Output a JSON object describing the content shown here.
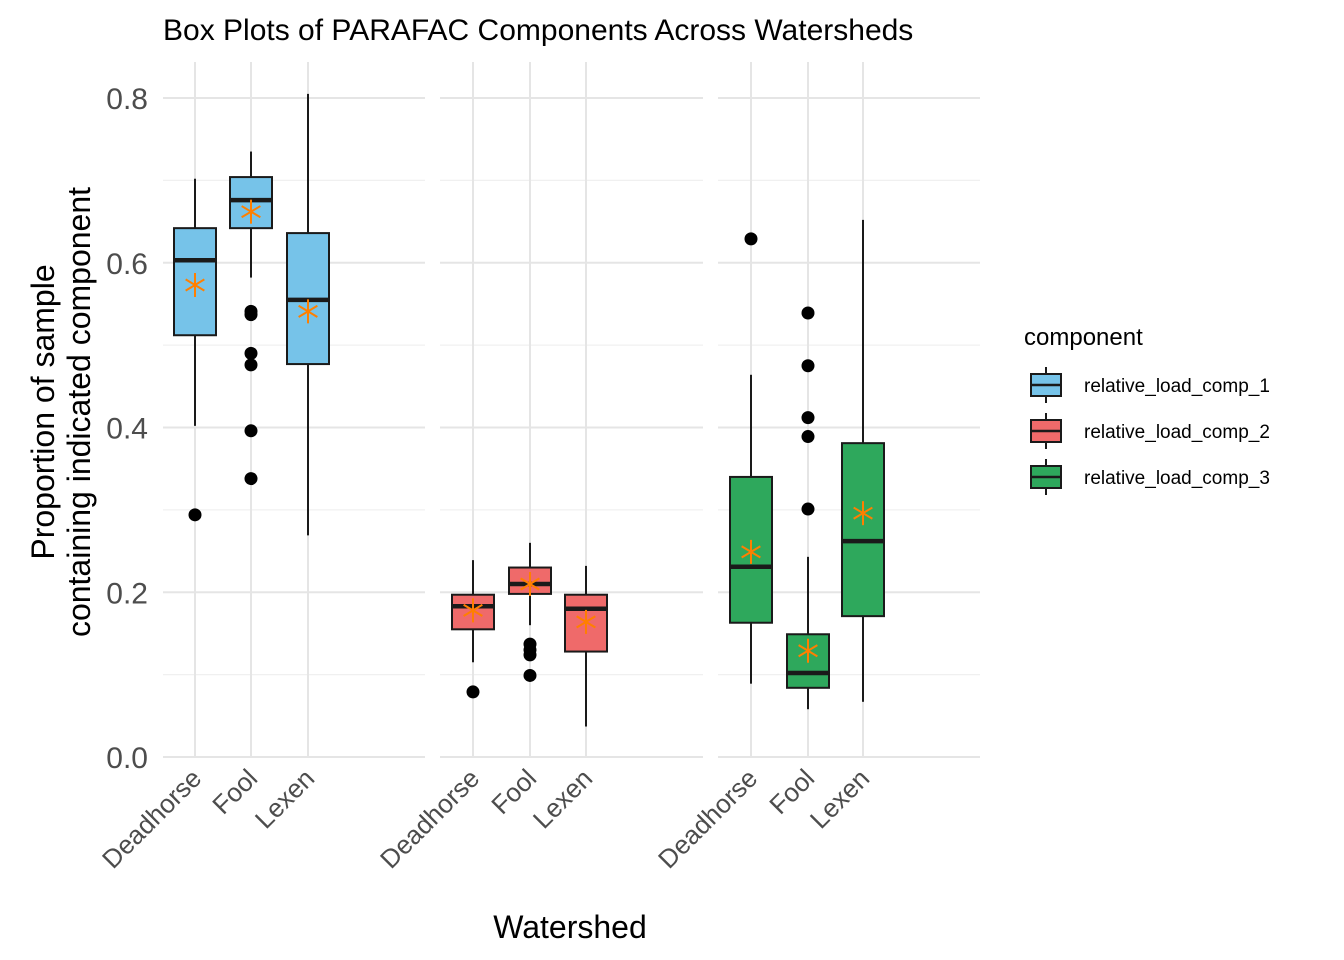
{
  "chart_data": {
    "type": "box",
    "title": "Box Plots of PARAFAC Components Across Watersheds",
    "xlabel": "Watershed",
    "ylabel_line1": "Proportion of sample",
    "ylabel_line2": "containing indicated component",
    "ylim": [
      0,
      0.84
    ],
    "yticks": [
      "0.0",
      "0.2",
      "0.4",
      "0.6",
      "0.8"
    ],
    "grid": true,
    "legend_position": "right",
    "legend_title": "component",
    "categories": [
      "Deadhorse",
      "Fool",
      "Lexen"
    ],
    "mean_marker_color": "#ff7f00",
    "series": [
      {
        "name": "relative_load_comp_1",
        "color": "#76c3e9",
        "boxes": [
          {
            "category": "Deadhorse",
            "whisker_low": 0.402,
            "q1": 0.512,
            "median": 0.603,
            "q3": 0.642,
            "whisker_high": 0.702,
            "mean": 0.573,
            "outliers": [
              0.294
            ]
          },
          {
            "category": "Fool",
            "whisker_low": 0.582,
            "q1": 0.642,
            "median": 0.676,
            "q3": 0.704,
            "whisker_high": 0.735,
            "mean": 0.662,
            "outliers": [
              0.541,
              0.537,
              0.49,
              0.476,
              0.396,
              0.338
            ]
          },
          {
            "category": "Lexen",
            "whisker_low": 0.269,
            "q1": 0.477,
            "median": 0.555,
            "q3": 0.636,
            "whisker_high": 0.805,
            "mean": 0.541,
            "outliers": []
          }
        ]
      },
      {
        "name": "relative_load_comp_2",
        "color": "#ef6a6a",
        "boxes": [
          {
            "category": "Deadhorse",
            "whisker_low": 0.115,
            "q1": 0.155,
            "median": 0.183,
            "q3": 0.197,
            "whisker_high": 0.239,
            "mean": 0.178,
            "outliers": [
              0.079
            ]
          },
          {
            "category": "Fool",
            "whisker_low": 0.16,
            "q1": 0.198,
            "median": 0.21,
            "q3": 0.23,
            "whisker_high": 0.26,
            "mean": 0.21,
            "outliers": [
              0.137,
              0.13,
              0.124,
              0.099
            ]
          },
          {
            "category": "Lexen",
            "whisker_low": 0.037,
            "q1": 0.128,
            "median": 0.18,
            "q3": 0.197,
            "whisker_high": 0.232,
            "mean": 0.164,
            "outliers": []
          }
        ]
      },
      {
        "name": "relative_load_comp_3",
        "color": "#2ea85c",
        "boxes": [
          {
            "category": "Deadhorse",
            "whisker_low": 0.089,
            "q1": 0.163,
            "median": 0.231,
            "q3": 0.34,
            "whisker_high": 0.464,
            "mean": 0.249,
            "outliers": [
              0.629
            ]
          },
          {
            "category": "Fool",
            "whisker_low": 0.058,
            "q1": 0.084,
            "median": 0.102,
            "q3": 0.149,
            "whisker_high": 0.243,
            "mean": 0.129,
            "outliers": [
              0.539,
              0.475,
              0.412,
              0.389,
              0.301
            ]
          },
          {
            "category": "Lexen",
            "whisker_low": 0.067,
            "q1": 0.171,
            "median": 0.262,
            "q3": 0.381,
            "whisker_high": 0.652,
            "mean": 0.296,
            "outliers": []
          }
        ]
      }
    ]
  }
}
